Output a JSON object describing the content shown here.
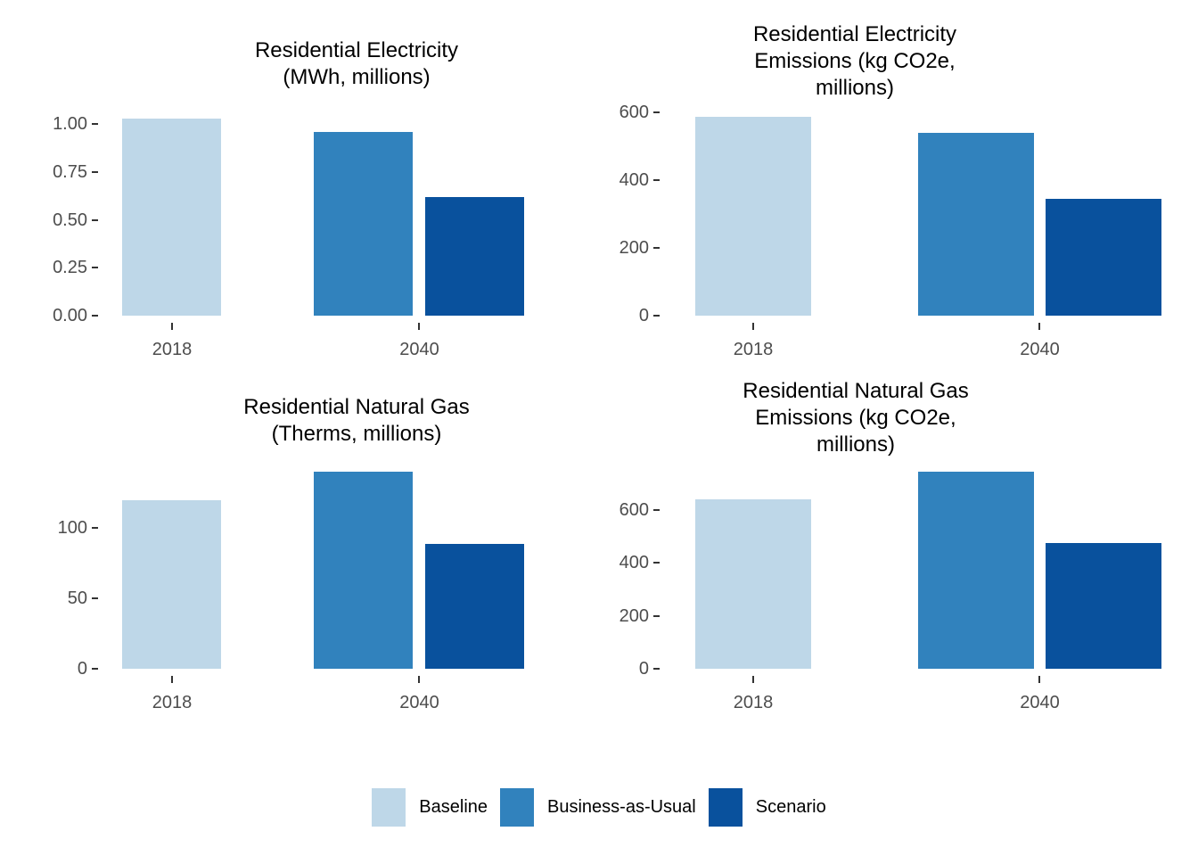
{
  "figure": {
    "background": "#ffffff",
    "legend_position": "bottom",
    "grid": false
  },
  "palette": {
    "Baseline": "#BED7E8",
    "Business-as-Usual": "#3182BD",
    "Scenario": "#09519D"
  },
  "legend": {
    "items": [
      {
        "label": "Baseline"
      },
      {
        "label": "Business-as-Usual"
      },
      {
        "label": "Scenario"
      }
    ]
  },
  "chart_data": [
    {
      "id": "residential-electricity-mwh",
      "type": "bar",
      "title": "Residential Electricity (MWh, millions)",
      "title_lines": [
        "Residential Electricity",
        "(MWh, millions)"
      ],
      "categories": [
        "2018",
        "2040"
      ],
      "series": [
        {
          "name": "Baseline",
          "category": "2018",
          "value": 1.03
        },
        {
          "name": "Business-as-Usual",
          "category": "2040",
          "value": 0.96
        },
        {
          "name": "Scenario",
          "category": "2040",
          "value": 0.62
        }
      ],
      "ylim": [
        0,
        1.09
      ],
      "yticks": [
        {
          "value": 0,
          "label": "0.00"
        },
        {
          "value": 0.25,
          "label": "0.25"
        },
        {
          "value": 0.5,
          "label": "0.50"
        },
        {
          "value": 0.75,
          "label": "0.75"
        },
        {
          "value": 1.0,
          "label": "1.00"
        }
      ],
      "xlabel": "",
      "ylabel": "",
      "grid": false
    },
    {
      "id": "residential-electricity-emissions",
      "type": "bar",
      "title": "Residential Electricity Emissions (kg CO2e, millions)",
      "title_lines": [
        "Residential Electricity",
        "Emissions (kg CO2e,",
        "millions)"
      ],
      "categories": [
        "2018",
        "2040"
      ],
      "series": [
        {
          "name": "Baseline",
          "category": "2018",
          "value": 585
        },
        {
          "name": "Business-as-Usual",
          "category": "2040",
          "value": 540
        },
        {
          "name": "Scenario",
          "category": "2040",
          "value": 345
        }
      ],
      "ylim": [
        0,
        615
      ],
      "yticks": [
        {
          "value": 0,
          "label": "0"
        },
        {
          "value": 200,
          "label": "200"
        },
        {
          "value": 400,
          "label": "400"
        },
        {
          "value": 600,
          "label": "600"
        }
      ],
      "xlabel": "",
      "ylabel": "",
      "grid": false
    },
    {
      "id": "residential-natural-gas-therms",
      "type": "bar",
      "title": "Residential Natural Gas (Therms, millions)",
      "title_lines": [
        "Residential Natural Gas",
        "(Therms, millions)"
      ],
      "categories": [
        "2018",
        "2040"
      ],
      "series": [
        {
          "name": "Baseline",
          "category": "2018",
          "value": 120
        },
        {
          "name": "Business-as-Usual",
          "category": "2040",
          "value": 140
        },
        {
          "name": "Scenario",
          "category": "2040",
          "value": 89
        }
      ],
      "ylim": [
        0,
        147
      ],
      "yticks": [
        {
          "value": 0,
          "label": "0"
        },
        {
          "value": 50,
          "label": "50"
        },
        {
          "value": 100,
          "label": "100"
        }
      ],
      "xlabel": "",
      "ylabel": "",
      "grid": false
    },
    {
      "id": "residential-natural-gas-emissions",
      "type": "bar",
      "title": "Residential Natural Gas Emissions (kg CO2e, millions)",
      "title_lines": [
        "Residential Natural Gas",
        "Emissions (kg CO2e,",
        "millions)"
      ],
      "categories": [
        "2018",
        "2040"
      ],
      "series": [
        {
          "name": "Baseline",
          "category": "2018",
          "value": 640
        },
        {
          "name": "Business-as-Usual",
          "category": "2040",
          "value": 745
        },
        {
          "name": "Scenario",
          "category": "2040",
          "value": 475
        }
      ],
      "ylim": [
        0,
        782
      ],
      "yticks": [
        {
          "value": 0,
          "label": "0"
        },
        {
          "value": 200,
          "label": "200"
        },
        {
          "value": 400,
          "label": "400"
        },
        {
          "value": 600,
          "label": "600"
        }
      ],
      "xlabel": "",
      "ylabel": "",
      "grid": false
    }
  ]
}
